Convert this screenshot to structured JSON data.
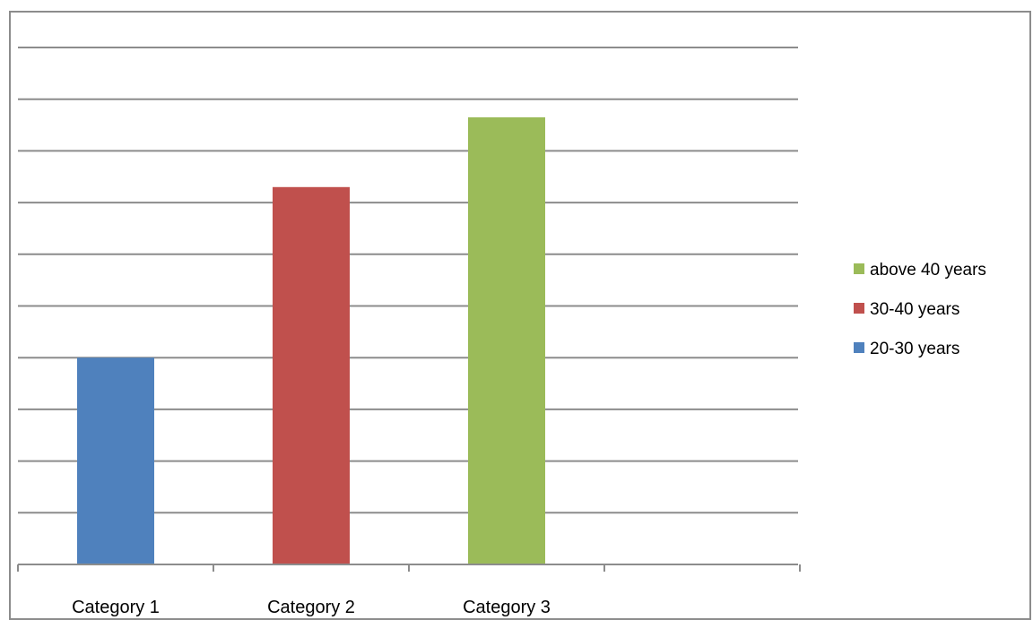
{
  "chart_data": {
    "type": "bar",
    "categories": [
      "Category 1",
      "Category 2",
      "Category 3"
    ],
    "ylim": [
      0,
      10
    ],
    "grid": true,
    "legend_position": "right",
    "series": [
      {
        "name": "20-30 years",
        "color": "#4F81BD",
        "values": [
          4,
          null,
          null
        ]
      },
      {
        "name": "30-40 years",
        "color": "#C0504D",
        "values": [
          null,
          7.3,
          null
        ]
      },
      {
        "name": "above 40 years",
        "color": "#9BBB59",
        "values": [
          null,
          null,
          8.65
        ]
      }
    ],
    "legend_order": [
      "above 40 years",
      "30-40 years",
      "20-30 years"
    ]
  }
}
